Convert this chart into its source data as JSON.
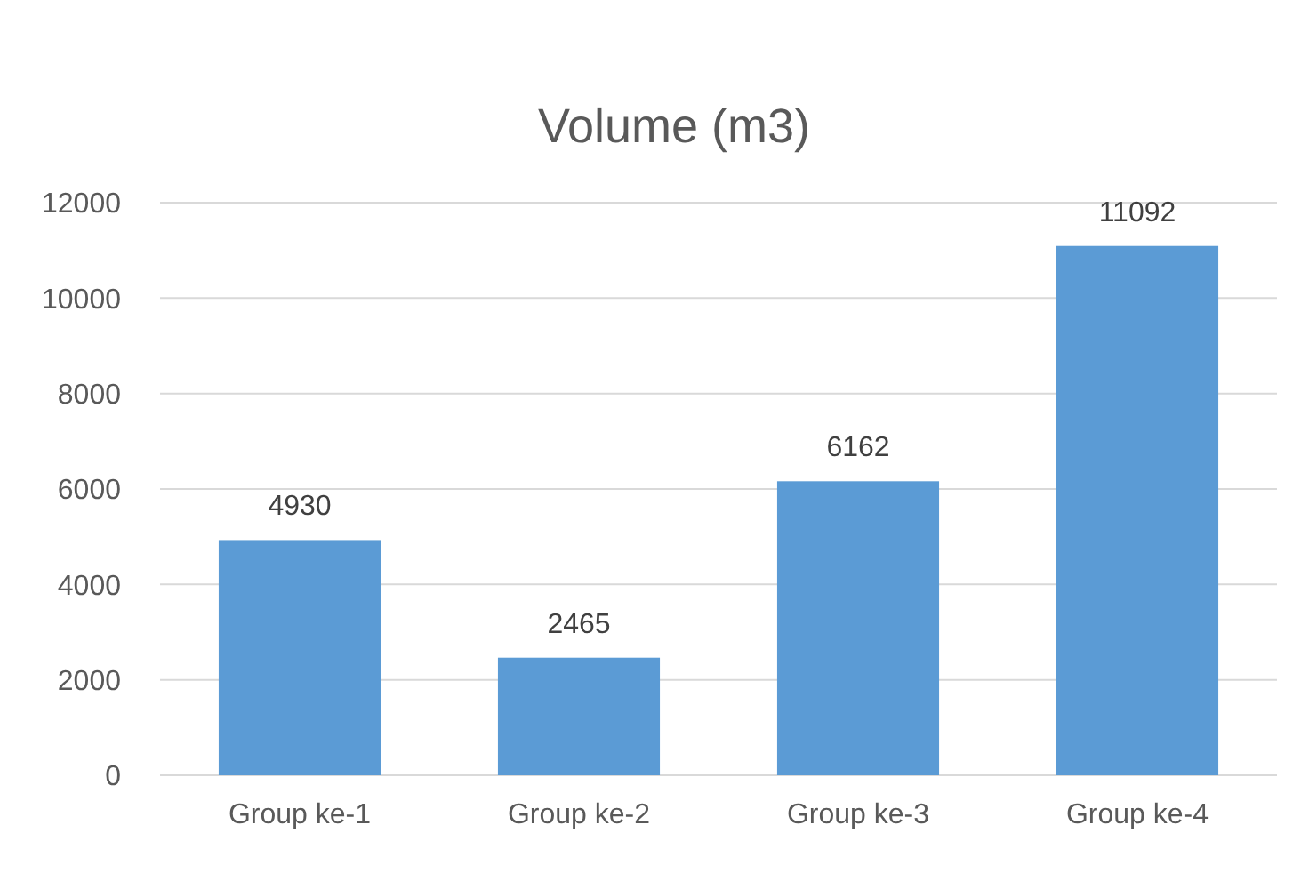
{
  "chart_data": {
    "type": "bar",
    "title": "Volume (m3)",
    "categories": [
      "Group ke-1",
      "Group ke-2",
      "Group ke-3",
      "Group ke-4"
    ],
    "values": [
      4930,
      2465,
      6162,
      11092
    ],
    "color": "#5b9bd5",
    "ylim": [
      0,
      12000
    ],
    "yticks": [
      0,
      2000,
      4000,
      6000,
      8000,
      10000,
      12000
    ],
    "grid": "y",
    "data_labels": true
  }
}
